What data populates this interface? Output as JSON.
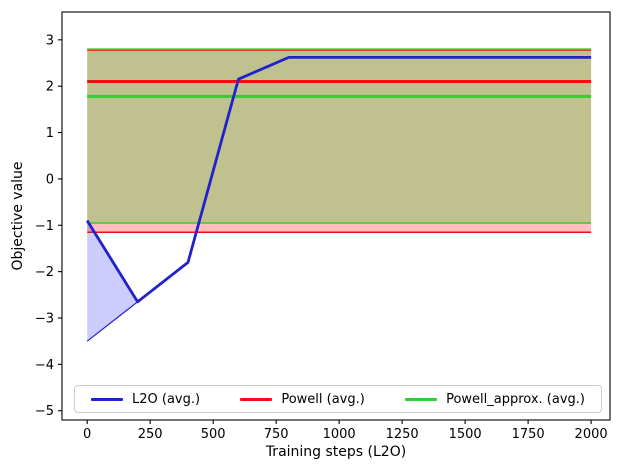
{
  "legend": {
    "items": [
      {
        "label": "L2O (avg.)",
        "color": "#2222cc"
      },
      {
        "label": "Powell (avg.)",
        "color": "#ee1111"
      },
      {
        "label": "Powell_approx. (avg.)",
        "color": "#33cc33"
      }
    ]
  },
  "chart_data": {
    "type": "line",
    "title": "",
    "xlabel": "Training steps (L2O)",
    "ylabel": "Objective value",
    "xlim": [
      -100,
      2075
    ],
    "ylim": [
      -5.2,
      3.6
    ],
    "grid": false,
    "legend_position": "lower center, horizontal, inside axes",
    "xticks": [
      {
        "v": 0,
        "label": "0"
      },
      {
        "v": 250,
        "label": "250"
      },
      {
        "v": 500,
        "label": "500"
      },
      {
        "v": 750,
        "label": "750"
      },
      {
        "v": 1000,
        "label": "1000"
      },
      {
        "v": 1250,
        "label": "1250"
      },
      {
        "v": 1500,
        "label": "1500"
      },
      {
        "v": 1750,
        "label": "1750"
      },
      {
        "v": 2000,
        "label": "2000"
      }
    ],
    "yticks": [
      {
        "v": -5,
        "label": "−5"
      },
      {
        "v": -4,
        "label": "−4"
      },
      {
        "v": -3,
        "label": "−3"
      },
      {
        "v": -2,
        "label": "−2"
      },
      {
        "v": -1,
        "label": "−1"
      },
      {
        "v": 0,
        "label": "0"
      },
      {
        "v": 1,
        "label": "1"
      },
      {
        "v": 2,
        "label": "2"
      },
      {
        "v": 3,
        "label": "3"
      }
    ],
    "bands": [
      {
        "name": "powell-minmax-band",
        "x": [
          0,
          2000
        ],
        "low": [
          -1.15,
          -1.15
        ],
        "high": [
          2.78,
          2.78
        ],
        "fill": "rgba(255,0,0,0.25)",
        "edge": "#ee1111",
        "edge_width": 1.5
      },
      {
        "name": "powell-approx-minmax-band",
        "x": [
          0,
          2000
        ],
        "low": [
          -0.95,
          -0.95
        ],
        "high": [
          2.8,
          2.8
        ],
        "fill": "rgba(0,204,0,0.25)",
        "edge": "#33cc33",
        "edge_width": 1.5
      },
      {
        "name": "l2o-minmax-band",
        "x": [
          0,
          200
        ],
        "low": [
          -3.5,
          -2.65
        ],
        "high": [
          -0.9,
          -2.65
        ],
        "fill": "rgba(0,0,255,0.2)",
        "edge": "#2222cc",
        "edge_width": 1.2
      }
    ],
    "series": [
      {
        "name": "Powell_approx. (avg.)",
        "color": "#33cc33",
        "width": 3,
        "x": [
          0,
          2000
        ],
        "y": [
          1.78,
          1.78
        ]
      },
      {
        "name": "Powell (avg.)",
        "color": "#ee1111",
        "width": 3,
        "x": [
          0,
          2000
        ],
        "y": [
          2.1,
          2.1
        ]
      },
      {
        "name": "L2O (avg.)",
        "color": "#2222cc",
        "width": 2.8,
        "x": [
          0,
          200,
          400,
          600,
          800,
          2000
        ],
        "y": [
          -0.9,
          -2.65,
          -1.8,
          2.15,
          2.62,
          2.62
        ]
      }
    ]
  }
}
